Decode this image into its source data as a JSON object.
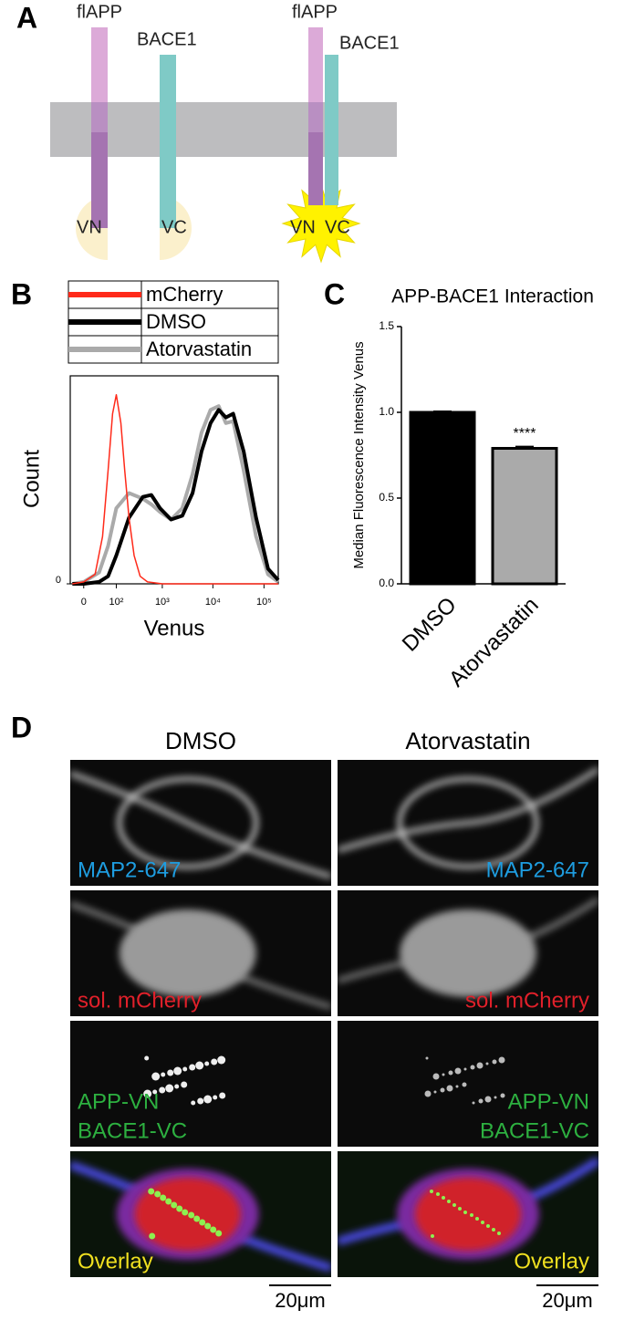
{
  "panel_labels": [
    "A",
    "B",
    "C",
    "D"
  ],
  "diagram": {
    "left": {
      "app_label": "flAPP",
      "bace_label": "BACE1",
      "vn": "VN",
      "vc": "VC"
    },
    "right": {
      "app_label": "flAPP",
      "bace_label": "BACE1",
      "vn": "VN",
      "vc": "VC"
    }
  },
  "chart_data": [
    {
      "type": "line",
      "xlabel": "Venus",
      "ylabel": "Count",
      "x_scale": "symlog",
      "linthresh": 30,
      "xlim": [
        -25,
        190000
      ],
      "ylim": [
        0,
        110
      ],
      "xticks": [
        0,
        {
          "value": 100,
          "label": "10²"
        },
        {
          "value": 1000,
          "label": "10³"
        },
        {
          "value": 10000,
          "label": "10⁴"
        },
        {
          "value": 100000,
          "label": "10⁵"
        }
      ],
      "yticks": [
        0
      ],
      "series": [
        {
          "name": "mCherry",
          "color": "#ff2a1a",
          "width": 1.5,
          "x": [
            -20,
            0,
            20,
            40,
            60,
            80,
            100,
            130,
            160,
            200,
            260,
            350,
            500,
            1000,
            10000,
            190000
          ],
          "values": [
            0,
            1,
            5,
            25,
            60,
            90,
            100,
            85,
            60,
            35,
            15,
            4,
            1,
            0,
            0,
            0
          ]
        },
        {
          "name": "DMSO",
          "color": "#000000",
          "width": 4,
          "x": [
            -20,
            0,
            30,
            60,
            100,
            200,
            400,
            600,
            900,
            1500,
            2500,
            4000,
            6000,
            9000,
            13000,
            18000,
            25000,
            40000,
            70000,
            120000,
            190000
          ],
          "values": [
            0,
            0,
            1,
            4,
            15,
            35,
            46,
            47,
            40,
            34,
            36,
            48,
            70,
            85,
            92,
            88,
            90,
            70,
            35,
            8,
            2
          ]
        },
        {
          "name": "Atorvastatin",
          "color": "#aaaaaa",
          "width": 4,
          "x": [
            -20,
            0,
            30,
            60,
            100,
            200,
            400,
            600,
            900,
            1500,
            2500,
            4000,
            6000,
            9000,
            13000,
            18000,
            25000,
            40000,
            70000,
            120000,
            190000
          ],
          "values": [
            0,
            1,
            6,
            20,
            40,
            48,
            45,
            42,
            38,
            34,
            40,
            58,
            80,
            92,
            94,
            85,
            86,
            60,
            25,
            5,
            1
          ]
        }
      ]
    },
    {
      "type": "bar",
      "title": "APP-BACE1 Interaction",
      "ylabel": "Median Fluorescence Intensity Venus",
      "categories": [
        "DMSO",
        "Atorvastatin"
      ],
      "values": [
        1.0,
        0.79
      ],
      "errors": [
        0.005,
        0.01
      ],
      "colors": [
        "#000000",
        "#aaaaaa"
      ],
      "ylim": [
        0,
        1.5
      ],
      "yticks": [
        {
          "value": 0,
          "label": "0.0"
        },
        0.5,
        {
          "value": 1,
          "label": "1.0"
        },
        1.5
      ],
      "annotation": {
        "text": "****",
        "category": "Atorvastatin"
      }
    }
  ],
  "micrographs": {
    "columns": [
      "DMSO",
      "Atorvastatin"
    ],
    "rows": [
      {
        "labels": [
          "MAP2-647"
        ],
        "color": "#1e9de0"
      },
      {
        "labels": [
          "sol. mCherry"
        ],
        "color": "#e0202a"
      },
      {
        "labels": [
          "APP-VN",
          "BACE1-VC"
        ],
        "color": "#2db040"
      },
      {
        "labels": [
          "Overlay"
        ],
        "color": "#f0e020"
      }
    ],
    "scale_bar": "20μm"
  }
}
